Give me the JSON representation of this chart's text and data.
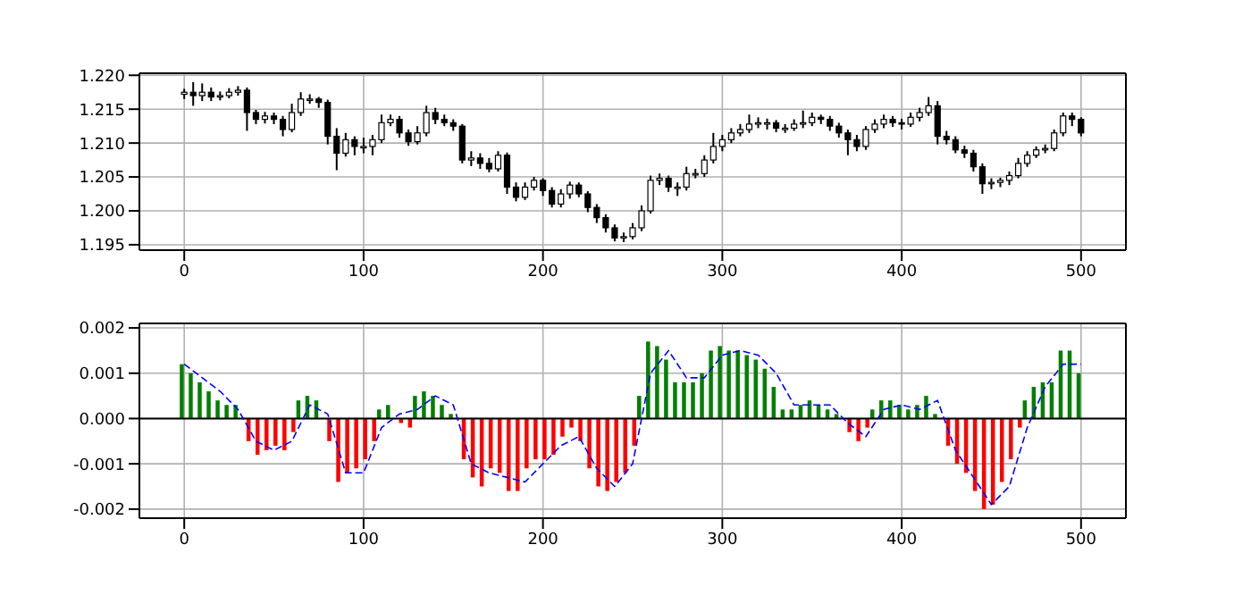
{
  "chart_data": [
    {
      "type": "candlestick",
      "color": "#000000",
      "grid": true,
      "x": [
        0,
        5,
        10,
        15,
        20,
        25,
        30,
        35,
        40,
        45,
        50,
        55,
        60,
        65,
        70,
        75,
        80,
        85,
        90,
        95,
        100,
        105,
        110,
        115,
        120,
        125,
        130,
        135,
        140,
        145,
        150,
        155,
        160,
        165,
        170,
        175,
        180,
        185,
        190,
        195,
        200,
        205,
        210,
        215,
        220,
        225,
        230,
        235,
        240,
        245,
        250,
        255,
        260,
        265,
        270,
        275,
        280,
        285,
        290,
        295,
        300,
        305,
        310,
        315,
        320,
        325,
        330,
        335,
        340,
        345,
        350,
        355,
        360,
        365,
        370,
        375,
        380,
        385,
        390,
        395,
        400,
        405,
        410,
        415,
        420,
        425,
        430,
        435,
        440,
        445,
        450,
        455,
        460,
        465,
        470,
        475,
        480,
        485,
        490,
        495,
        500
      ],
      "ohlc": [
        [
          1.2172,
          1.218,
          1.2165,
          1.2175
        ],
        [
          1.2175,
          1.219,
          1.2155,
          1.217
        ],
        [
          1.217,
          1.2188,
          1.2162,
          1.2175
        ],
        [
          1.2175,
          1.2182,
          1.2162,
          1.2168
        ],
        [
          1.2168,
          1.2176,
          1.2163,
          1.217
        ],
        [
          1.217,
          1.2181,
          1.2166,
          1.2175
        ],
        [
          1.2175,
          1.2184,
          1.217,
          1.2178
        ],
        [
          1.2178,
          1.2182,
          1.2118,
          1.2145
        ],
        [
          1.2145,
          1.2149,
          1.2128,
          1.2135
        ],
        [
          1.2135,
          1.2146,
          1.2129,
          1.214
        ],
        [
          1.214,
          1.2145,
          1.2128,
          1.2135
        ],
        [
          1.2135,
          1.214,
          1.211,
          1.212
        ],
        [
          1.212,
          1.2158,
          1.2116,
          1.2145
        ],
        [
          1.2145,
          1.2175,
          1.214,
          1.2165
        ],
        [
          1.2165,
          1.2172,
          1.2158,
          1.2165
        ],
        [
          1.2165,
          1.2168,
          1.2152,
          1.216
        ],
        [
          1.216,
          1.2164,
          1.2098,
          1.211
        ],
        [
          1.211,
          1.2122,
          1.206,
          1.2085
        ],
        [
          1.2085,
          1.2115,
          1.208,
          1.2105
        ],
        [
          1.2105,
          1.211,
          1.2082,
          1.2095
        ],
        [
          1.2095,
          1.2108,
          1.2085,
          1.2095
        ],
        [
          1.2095,
          1.2112,
          1.2082,
          1.2105
        ],
        [
          1.2105,
          1.2142,
          1.21,
          1.213
        ],
        [
          1.213,
          1.2142,
          1.2125,
          1.2135
        ],
        [
          1.2135,
          1.214,
          1.2108,
          1.2115
        ],
        [
          1.2115,
          1.212,
          1.2096,
          1.2102
        ],
        [
          1.2102,
          1.2125,
          1.2098,
          1.2115
        ],
        [
          1.2115,
          1.2155,
          1.211,
          1.2145
        ],
        [
          1.2145,
          1.2152,
          1.2128,
          1.2135
        ],
        [
          1.2135,
          1.2142,
          1.2125,
          1.213
        ],
        [
          1.213,
          1.2135,
          1.2118,
          1.2125
        ],
        [
          1.2125,
          1.2128,
          1.207,
          1.2075
        ],
        [
          1.2075,
          1.2088,
          1.2066,
          1.2078
        ],
        [
          1.2078,
          1.2085,
          1.2062,
          1.207
        ],
        [
          1.207,
          1.2078,
          1.2057,
          1.2062
        ],
        [
          1.2062,
          1.2088,
          1.2058,
          1.2082
        ],
        [
          1.2082,
          1.2086,
          1.2025,
          1.2035
        ],
        [
          1.2035,
          1.2042,
          1.2014,
          1.202
        ],
        [
          1.202,
          1.2042,
          1.2016,
          1.2035
        ],
        [
          1.2035,
          1.205,
          1.203,
          1.2045
        ],
        [
          1.2045,
          1.2048,
          1.2022,
          1.203
        ],
        [
          1.203,
          1.2035,
          1.2005,
          1.201
        ],
        [
          1.201,
          1.2032,
          1.2005,
          1.2025
        ],
        [
          1.2025,
          1.2043,
          1.2018,
          1.2038
        ],
        [
          1.2038,
          1.2042,
          1.202,
          1.2025
        ],
        [
          1.2025,
          1.2029,
          1.1998,
          1.2005
        ],
        [
          1.2005,
          1.201,
          1.1982,
          1.199
        ],
        [
          1.199,
          1.1995,
          1.1968,
          1.1975
        ],
        [
          1.1975,
          1.198,
          1.1955,
          1.196
        ],
        [
          1.196,
          1.1968,
          1.1954,
          1.1962
        ],
        [
          1.1962,
          1.1982,
          1.1958,
          1.1975
        ],
        [
          1.1975,
          1.2008,
          1.197,
          1.2
        ],
        [
          1.2,
          1.2052,
          1.1996,
          1.2045
        ],
        [
          1.2045,
          1.2055,
          1.2038,
          1.2048
        ],
        [
          1.2048,
          1.2052,
          1.2028,
          1.2035
        ],
        [
          1.2035,
          1.2042,
          1.2022,
          1.2035
        ],
        [
          1.2035,
          1.2065,
          1.203,
          1.2055
        ],
        [
          1.2055,
          1.2062,
          1.2048,
          1.2055
        ],
        [
          1.2055,
          1.2082,
          1.205,
          1.2075
        ],
        [
          1.2075,
          1.2115,
          1.207,
          1.2095
        ],
        [
          1.2095,
          1.2112,
          1.2088,
          1.2105
        ],
        [
          1.2105,
          1.2122,
          1.21,
          1.2115
        ],
        [
          1.2115,
          1.2128,
          1.211,
          1.212
        ],
        [
          1.212,
          1.2142,
          1.2115,
          1.2128
        ],
        [
          1.2128,
          1.2138,
          1.2122,
          1.213
        ],
        [
          1.213,
          1.2136,
          1.212,
          1.213
        ],
        [
          1.213,
          1.2134,
          1.2116,
          1.2122
        ],
        [
          1.2122,
          1.2128,
          1.2115,
          1.2122
        ],
        [
          1.2122,
          1.2135,
          1.2118,
          1.2128
        ],
        [
          1.2128,
          1.2148,
          1.2122,
          1.213
        ],
        [
          1.213,
          1.2145,
          1.2125,
          1.2138
        ],
        [
          1.2138,
          1.2142,
          1.2128,
          1.2135
        ],
        [
          1.2135,
          1.214,
          1.2118,
          1.2125
        ],
        [
          1.2125,
          1.213,
          1.2108,
          1.2115
        ],
        [
          1.2115,
          1.212,
          1.2082,
          1.2105
        ],
        [
          1.2105,
          1.2112,
          1.2088,
          1.2095
        ],
        [
          1.2095,
          1.2125,
          1.209,
          1.212
        ],
        [
          1.212,
          1.2135,
          1.2115,
          1.2128
        ],
        [
          1.2128,
          1.2142,
          1.2122,
          1.2135
        ],
        [
          1.2135,
          1.214,
          1.2124,
          1.213
        ],
        [
          1.213,
          1.2136,
          1.212,
          1.2128
        ],
        [
          1.2128,
          1.2145,
          1.2124,
          1.2138
        ],
        [
          1.2138,
          1.2152,
          1.2132,
          1.2145
        ],
        [
          1.2145,
          1.2168,
          1.214,
          1.2155
        ],
        [
          1.2155,
          1.2162,
          1.2098,
          1.211
        ],
        [
          1.211,
          1.2118,
          1.2098,
          1.2105
        ],
        [
          1.2105,
          1.211,
          1.2085,
          1.209
        ],
        [
          1.209,
          1.2096,
          1.2078,
          1.2085
        ],
        [
          1.2085,
          1.209,
          1.2058,
          1.2065
        ],
        [
          1.2065,
          1.207,
          1.2025,
          1.204
        ],
        [
          1.204,
          1.2048,
          1.2032,
          1.2042
        ],
        [
          1.2042,
          1.2049,
          1.2035,
          1.2045
        ],
        [
          1.2045,
          1.2058,
          1.2038,
          1.2052
        ],
        [
          1.2052,
          1.2078,
          1.2048,
          1.207
        ],
        [
          1.207,
          1.2088,
          1.2065,
          1.2082
        ],
        [
          1.2082,
          1.2095,
          1.2078,
          1.209
        ],
        [
          1.209,
          1.2098,
          1.2085,
          1.2092
        ],
        [
          1.2092,
          1.212,
          1.2088,
          1.2115
        ],
        [
          1.2115,
          1.2145,
          1.211,
          1.214
        ],
        [
          1.214,
          1.2145,
          1.2125,
          1.2135
        ],
        [
          1.2135,
          1.2138,
          1.211,
          1.2115
        ]
      ],
      "xlim": [
        -25,
        525
      ],
      "xticks": [
        0,
        100,
        200,
        300,
        400,
        500
      ],
      "ylim": [
        1.1942,
        1.2203
      ],
      "yticks": [
        {
          "value": 1.195,
          "label": "1.195"
        },
        {
          "value": 1.2,
          "label": "1.200"
        },
        {
          "value": 1.205,
          "label": "1.205"
        },
        {
          "value": 1.21,
          "label": "1.210"
        },
        {
          "value": 1.215,
          "label": "1.215"
        },
        {
          "value": 1.22,
          "label": "1.220"
        }
      ]
    },
    {
      "type": "bar",
      "grid": true,
      "x": [
        0,
        5,
        10,
        15,
        20,
        25,
        30,
        35,
        40,
        45,
        50,
        55,
        60,
        65,
        70,
        75,
        80,
        85,
        90,
        95,
        100,
        105,
        110,
        115,
        120,
        125,
        130,
        135,
        140,
        145,
        150,
        155,
        160,
        165,
        170,
        175,
        180,
        185,
        190,
        195,
        200,
        205,
        210,
        215,
        220,
        225,
        230,
        235,
        240,
        245,
        250,
        255,
        260,
        265,
        270,
        275,
        280,
        285,
        290,
        295,
        300,
        305,
        310,
        315,
        320,
        325,
        330,
        335,
        340,
        345,
        350,
        355,
        360,
        365,
        370,
        375,
        380,
        385,
        390,
        395,
        400,
        405,
        410,
        415,
        420,
        425,
        430,
        435,
        440,
        445,
        450,
        455,
        460,
        465,
        470,
        475,
        480,
        485,
        490,
        495,
        500
      ],
      "series": [
        {
          "color": "#008000",
          "values": [
            0.0012,
            0.001,
            0.0008,
            0.0006,
            0.0004,
            0.0003,
            0.0003,
            null,
            null,
            null,
            null,
            null,
            null,
            0.0004,
            0.0005,
            0.0004,
            null,
            null,
            null,
            null,
            null,
            null,
            0.0002,
            0.0003,
            null,
            null,
            0.0005,
            0.0006,
            0.0005,
            0.0003,
            0.0001,
            null,
            null,
            null,
            null,
            null,
            null,
            null,
            null,
            null,
            null,
            null,
            null,
            null,
            null,
            null,
            null,
            null,
            null,
            null,
            null,
            0.0005,
            0.0017,
            0.0016,
            0.0013,
            0.0008,
            0.0008,
            0.0008,
            0.001,
            0.0015,
            0.0016,
            0.0015,
            0.0015,
            0.0014,
            0.0013,
            0.0011,
            0.0007,
            0.0002,
            0.0002,
            0.0003,
            0.0004,
            0.0003,
            0.0002,
            0.0001,
            null,
            null,
            null,
            0.0002,
            0.0004,
            0.0004,
            0.0003,
            0.0002,
            0.0003,
            0.0005,
            0.0001,
            null,
            null,
            null,
            null,
            null,
            null,
            null,
            null,
            null,
            0.0004,
            0.0007,
            0.0008,
            0.0008,
            0.0015,
            0.0015,
            0.001
          ]
        },
        {
          "color": "#ff0000",
          "values": [
            null,
            null,
            null,
            null,
            null,
            null,
            null,
            -0.0005,
            -0.0008,
            -0.0007,
            -0.0006,
            -0.0007,
            -0.0003,
            null,
            null,
            null,
            -0.0005,
            -0.0014,
            -0.0012,
            -0.0011,
            -0.0009,
            -0.0005,
            null,
            null,
            -0.0001,
            -0.0002,
            null,
            null,
            null,
            null,
            null,
            -0.0009,
            -0.0013,
            -0.0015,
            -0.0011,
            -0.0012,
            -0.0016,
            -0.0016,
            -0.0011,
            -0.0009,
            -0.0009,
            -0.0008,
            -0.0004,
            -0.0002,
            -0.0005,
            -0.0011,
            -0.0015,
            -0.0016,
            -0.0014,
            -0.0012,
            -0.0006,
            null,
            null,
            null,
            null,
            null,
            null,
            null,
            null,
            null,
            null,
            null,
            null,
            null,
            null,
            null,
            null,
            null,
            null,
            null,
            null,
            null,
            null,
            null,
            -0.0003,
            -0.0005,
            -0.0002,
            null,
            null,
            null,
            null,
            null,
            null,
            null,
            null,
            -0.0006,
            -0.001,
            -0.0012,
            -0.0016,
            -0.002,
            -0.0019,
            -0.0014,
            -0.0009,
            -0.0002,
            null,
            null,
            null,
            null,
            null,
            null,
            null
          ]
        },
        {
          "type": "line",
          "color": "#0000ff",
          "line_style": "dashed",
          "x": [
            0,
            10,
            20,
            30,
            40,
            50,
            60,
            70,
            80,
            90,
            100,
            110,
            120,
            130,
            140,
            150,
            160,
            170,
            180,
            190,
            200,
            210,
            220,
            230,
            240,
            250,
            260,
            270,
            280,
            290,
            300,
            310,
            320,
            330,
            340,
            350,
            360,
            370,
            380,
            390,
            400,
            410,
            420,
            430,
            440,
            450,
            460,
            470,
            480,
            490,
            500
          ],
          "values": [
            0.0012,
            0.0009,
            0.0006,
            0.0002,
            -0.0005,
            -0.0007,
            -0.0005,
            0.0003,
            0.0001,
            -0.0012,
            -0.0012,
            -0.0002,
            0.0001,
            0.0002,
            0.0005,
            0.0003,
            -0.001,
            -0.0012,
            -0.0013,
            -0.0014,
            -0.001,
            -0.0006,
            -0.0004,
            -0.0011,
            -0.0015,
            -0.001,
            0.001,
            0.0015,
            0.0009,
            0.0009,
            0.0014,
            0.0015,
            0.0014,
            0.001,
            0.0003,
            0.0003,
            0.0003,
            -0.0001,
            -0.0004,
            0.0002,
            0.0003,
            0.0002,
            0.0004,
            -0.0007,
            -0.0013,
            -0.0019,
            -0.0015,
            -0.0002,
            0.0007,
            0.0012,
            0.0012
          ]
        }
      ],
      "ref_lines": [
        {
          "axis": "y",
          "value": 0,
          "color": "#000000"
        }
      ],
      "xlim": [
        -25,
        525
      ],
      "xticks": [
        0,
        100,
        200,
        300,
        400,
        500
      ],
      "ylim": [
        -0.0022,
        0.0021
      ],
      "yticks": [
        {
          "value": -0.002,
          "label": "-0.002"
        },
        {
          "value": -0.001,
          "label": "-0.001"
        },
        {
          "value": 0,
          "label": "0.000"
        },
        {
          "value": 0.001,
          "label": "0.001"
        },
        {
          "value": 0.002,
          "label": "0.002"
        }
      ]
    }
  ]
}
